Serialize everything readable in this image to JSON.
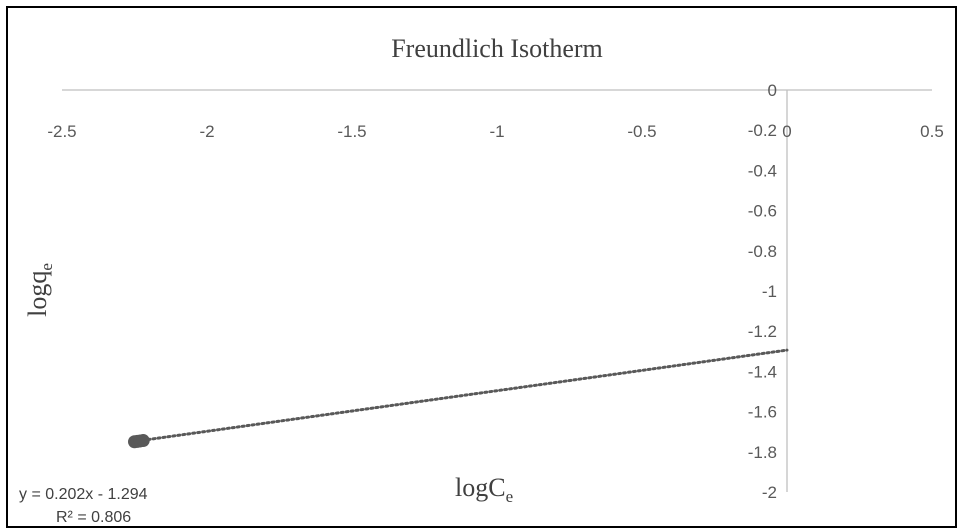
{
  "chart_data": {
    "type": "scatter",
    "title": "Freundlich Isotherm",
    "xlabel": {
      "main": "logC",
      "sub": "e"
    },
    "ylabel": {
      "main": "logq",
      "sub": "e"
    },
    "xlim": [
      -2.5,
      0.5
    ],
    "ylim": [
      -2,
      0
    ],
    "x_ticks": [
      "-2.5",
      "-2",
      "-1.5",
      "-1",
      "-0.5",
      "0",
      "0.5"
    ],
    "y_ticks": [
      "0",
      "-0.2",
      "-0.4",
      "-0.6",
      "-0.8",
      "-1",
      "-1.2",
      "-1.4",
      "-1.6",
      "-1.8",
      "-2"
    ],
    "grid": false,
    "series": [
      {
        "points": [
          {
            "x": -2.25,
            "y": -1.75
          },
          {
            "x": -2.24,
            "y": -1.748
          },
          {
            "x": -2.23,
            "y": -1.746
          },
          {
            "x": -2.22,
            "y": -1.744
          }
        ],
        "color": "#595959"
      }
    ],
    "trendline": {
      "slope": 0.202,
      "intercept": -1.294,
      "x_range": [
        -2.22,
        0
      ],
      "style": "dotted",
      "color": "#595959",
      "equation": "y = 0.202x - 1.294",
      "r_squared": "R² = 0.806"
    }
  }
}
